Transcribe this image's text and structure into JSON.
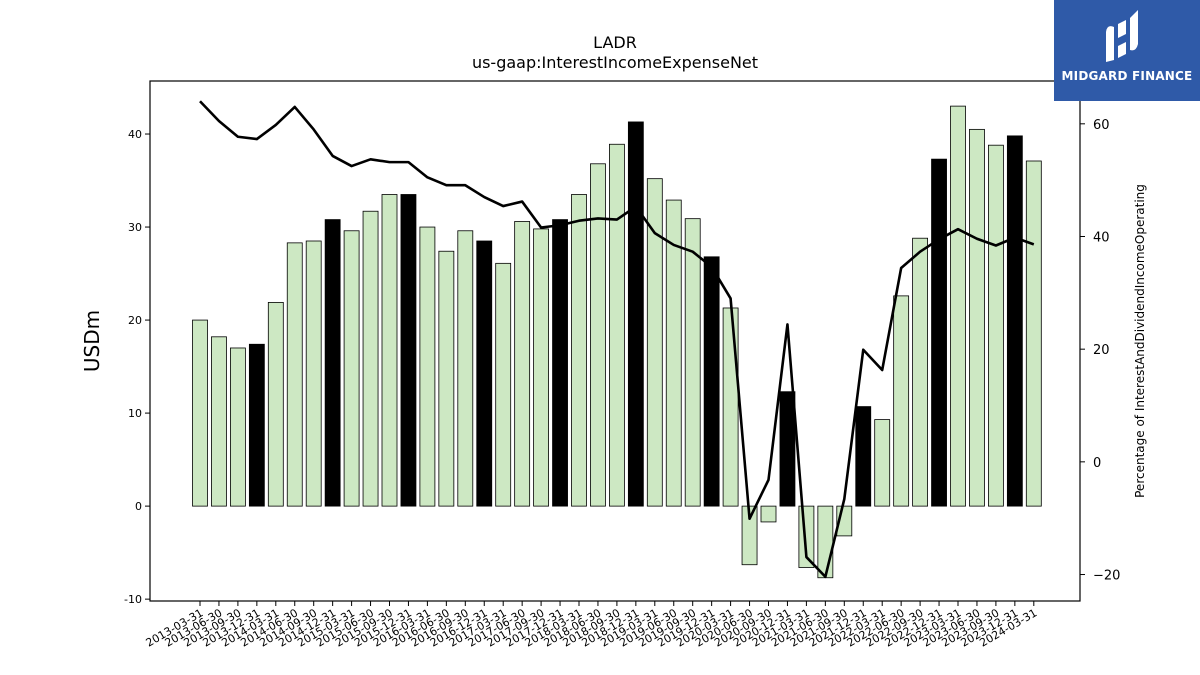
{
  "brand": {
    "name": "MIDGARD FINANCE",
    "bg_color": "#2f5aa8"
  },
  "chart_data": {
    "type": "bar",
    "title": "LADR",
    "subtitle": "us-gaap:InterestIncomeExpenseNet",
    "ylabel": "USDm",
    "y2label": "Percentage of InterestAndDividendIncomeOperating",
    "ylim": [
      -10.2,
      45.7
    ],
    "y2lim": [
      -24.7,
      67.6
    ],
    "yticks": [
      -10,
      0,
      10,
      20,
      30,
      40
    ],
    "y2ticks": [
      -20,
      0,
      20,
      40,
      60
    ],
    "bar_color": "#cde8c3",
    "highlight_color": "#000000",
    "line_color": "#000000",
    "categories": [
      "2013-03-31",
      "2013-06-30",
      "2013-09-30",
      "2013-12-31",
      "2014-03-31",
      "2014-06-30",
      "2014-09-30",
      "2014-12-31",
      "2015-03-31",
      "2015-06-30",
      "2015-09-30",
      "2015-12-31",
      "2016-03-31",
      "2016-06-30",
      "2016-09-30",
      "2016-12-31",
      "2017-03-31",
      "2017-06-30",
      "2017-09-30",
      "2017-12-31",
      "2018-03-31",
      "2018-06-30",
      "2018-09-30",
      "2018-12-31",
      "2019-03-31",
      "2019-06-30",
      "2019-09-30",
      "2019-12-31",
      "2020-03-31",
      "2020-06-30",
      "2020-09-30",
      "2020-12-31",
      "2021-03-31",
      "2021-06-30",
      "2021-09-30",
      "2021-12-31",
      "2022-03-31",
      "2022-06-30",
      "2022-09-30",
      "2022-12-31",
      "2023-03-31",
      "2023-06-30",
      "2023-09-30",
      "2023-12-31",
      "2024-03-31"
    ],
    "series": [
      {
        "type": "bar",
        "values": [
          20.0,
          18.2,
          17.0,
          17.4,
          21.9,
          28.3,
          28.5,
          30.8,
          29.6,
          31.7,
          33.5,
          33.5,
          30.0,
          27.4,
          29.6,
          28.5,
          26.1,
          30.6,
          29.8,
          30.8,
          33.5,
          36.8,
          38.9,
          41.3,
          35.2,
          32.9,
          30.9,
          26.8,
          21.3,
          -6.3,
          -1.7,
          12.3,
          -6.6,
          -7.7,
          -3.2,
          10.7,
          9.3,
          22.6,
          28.8,
          37.3,
          43.0,
          40.5,
          38.8,
          39.8,
          37.1
        ],
        "highlighted": [
          false,
          false,
          false,
          true,
          false,
          false,
          false,
          true,
          false,
          false,
          false,
          true,
          false,
          false,
          false,
          true,
          false,
          false,
          false,
          true,
          false,
          false,
          false,
          true,
          false,
          false,
          false,
          true,
          false,
          false,
          false,
          true,
          false,
          false,
          false,
          true,
          false,
          false,
          false,
          true,
          false,
          false,
          false,
          true,
          false
        ]
      },
      {
        "type": "line",
        "axis": "right",
        "values": [
          64.0,
          60.5,
          57.7,
          57.3,
          59.8,
          63.0,
          59.0,
          54.3,
          52.5,
          53.7,
          53.2,
          53.2,
          50.5,
          49.1,
          49.1,
          47.0,
          45.4,
          46.2,
          41.6,
          42.0,
          42.8,
          43.2,
          43.0,
          45.3,
          40.6,
          38.5,
          37.3,
          34.6,
          29.0,
          -10.1,
          -3.2,
          24.4,
          -16.9,
          -20.4,
          -6.6,
          19.9,
          16.3,
          34.4,
          37.3,
          39.5,
          41.3,
          39.6,
          38.4,
          39.8,
          38.6
        ]
      }
    ]
  }
}
